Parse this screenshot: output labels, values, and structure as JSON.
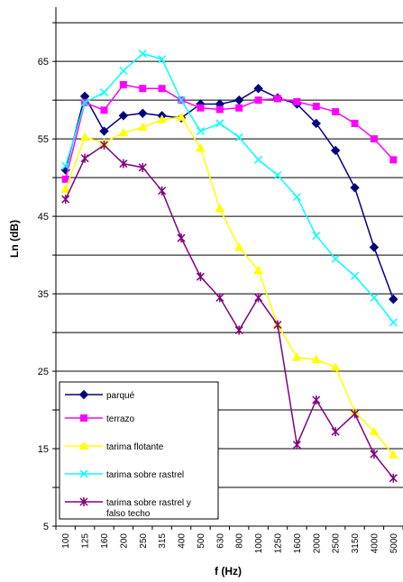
{
  "chart_data": {
    "type": "line",
    "xlabel": "f (Hz)",
    "ylabel": "Ln (dB)",
    "categories": [
      "100",
      "125",
      "160",
      "200",
      "250",
      "315",
      "400",
      "500",
      "630",
      "800",
      "1000",
      "1250",
      "1600",
      "2000",
      "2500",
      "3150",
      "4000",
      "5000"
    ],
    "ylim": [
      5,
      72
    ],
    "yticks": [
      5,
      15,
      25,
      35,
      45,
      55,
      65
    ],
    "grid": "horizontal every 5 dB",
    "legend_position": "bottom-left",
    "series": [
      {
        "name": "parqué",
        "color": "#000080",
        "marker": "diamond",
        "values": [
          51,
          60.5,
          56,
          58,
          58.3,
          58,
          57.7,
          59.5,
          59.5,
          60,
          61.5,
          60.3,
          59.5,
          57,
          53.5,
          48.7,
          41,
          34.3
        ]
      },
      {
        "name": "terrazo",
        "color": "#FF00FF",
        "marker": "square",
        "values": [
          49.8,
          59.7,
          58.7,
          62,
          61.5,
          61.5,
          60,
          59,
          58.8,
          59,
          60,
          60.2,
          59.8,
          59.2,
          58.5,
          57,
          55,
          52.3
        ]
      },
      {
        "name": "tarima flotante",
        "color": "#FFFF00",
        "marker": "triangle",
        "values": [
          48.5,
          55.2,
          54.5,
          55.8,
          56.5,
          57.5,
          57.8,
          53.8,
          46,
          41,
          38,
          31,
          26.8,
          26.5,
          25.5,
          19.8,
          17.2,
          14.2
        ]
      },
      {
        "name": "tarima sobre rastrel",
        "color": "#00FFFF",
        "marker": "x",
        "values": [
          51.5,
          59.7,
          61,
          63.8,
          66,
          65.3,
          60,
          56,
          57,
          55.2,
          52.3,
          50.3,
          47.5,
          42.5,
          39.5,
          37.3,
          34.5,
          31.3
        ]
      },
      {
        "name": "tarima sobre rastrel y falso techo",
        "color": "#800080",
        "marker": "star",
        "values": [
          47.2,
          52.5,
          54.2,
          51.8,
          51.3,
          48.3,
          42.2,
          37.2,
          34.5,
          30.3,
          34.5,
          31,
          15.5,
          21.3,
          17.2,
          19.5,
          14.3,
          11.2
        ]
      }
    ]
  }
}
